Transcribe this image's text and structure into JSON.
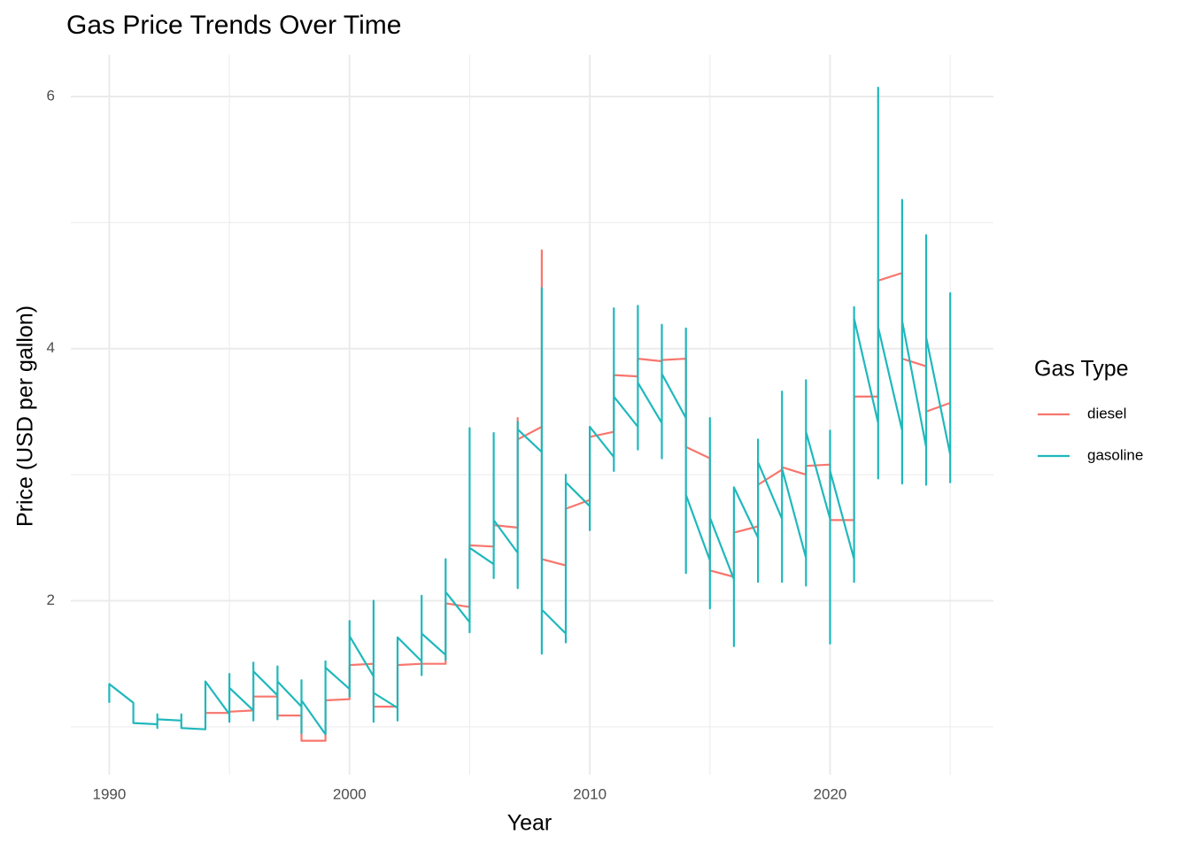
{
  "chart_data": {
    "type": "line",
    "title": "Gas Price Trends Over Time",
    "x_label": "Year",
    "y_label": "Price (USD per gallon)",
    "legend_title": "Gas Type",
    "legend": "right",
    "xlim": [
      1988.4,
      2026.8
    ],
    "xticks": [
      1990,
      2000,
      2010,
      2020
    ],
    "x_minor_ticks": [
      1995,
      2005,
      2015,
      2025
    ],
    "ylim": [
      0.62,
      6.33
    ],
    "yticks": [
      2,
      4,
      6
    ],
    "y_minor_ticks": [
      1,
      3,
      5
    ],
    "grid": true,
    "series": [
      {
        "name": "diesel",
        "color": "#F8766D",
        "x": [
          1994,
          1995,
          1995,
          1996,
          1996,
          1997,
          1997,
          1998,
          1998,
          1999,
          1999,
          2000,
          2000,
          2001,
          2001,
          2002,
          2002,
          2003,
          2003,
          2004,
          2004,
          2005,
          2005,
          2006,
          2006,
          2007,
          2007,
          2007,
          2008,
          2008,
          2008,
          2009,
          2009,
          2010,
          2010,
          2011,
          2011,
          2012,
          2012,
          2013,
          2013,
          2014,
          2014,
          2015,
          2015,
          2016,
          2016,
          2017,
          2017,
          2018,
          2018,
          2019,
          2019,
          2020,
          2020,
          2021,
          2021,
          2022,
          2022,
          2023,
          2023,
          2024,
          2024,
          2025,
          2025
        ],
        "values": [
          1.11,
          1.11,
          1.12,
          1.13,
          1.24,
          1.24,
          1.09,
          1.09,
          0.89,
          0.89,
          1.21,
          1.22,
          1.49,
          1.5,
          1.16,
          1.16,
          1.49,
          1.5,
          1.5,
          1.5,
          1.98,
          1.95,
          2.44,
          2.43,
          2.6,
          2.58,
          3.45,
          3.28,
          3.38,
          4.78,
          2.33,
          2.28,
          2.73,
          2.8,
          3.3,
          3.34,
          3.79,
          3.78,
          3.92,
          3.9,
          3.91,
          3.92,
          3.22,
          3.13,
          2.24,
          2.19,
          2.54,
          2.59,
          2.92,
          3.04,
          3.06,
          3.0,
          3.07,
          3.08,
          2.64,
          2.64,
          3.62,
          3.62,
          4.54,
          4.6,
          3.92,
          3.86,
          3.5,
          3.57,
          3.57
        ]
      },
      {
        "name": "gasoline",
        "color": "#1FB8BC",
        "x": [
          1990,
          1990,
          1991,
          1991,
          1992,
          1992,
          1992,
          1992,
          1993,
          1993,
          1993,
          1994,
          1994,
          1995,
          1995,
          1995,
          1995,
          1996,
          1996,
          1996,
          1996,
          1997,
          1997,
          1997,
          1997,
          1998,
          1998,
          1998,
          1998,
          1999,
          1999,
          1999,
          2000,
          2000,
          2000,
          2000,
          2001,
          2001,
          2001,
          2001,
          2002,
          2002,
          2002,
          2003,
          2003,
          2003,
          2003,
          2004,
          2004,
          2004,
          2004,
          2005,
          2005,
          2005,
          2005,
          2006,
          2006,
          2006,
          2006,
          2007,
          2007,
          2007,
          2007,
          2008,
          2008,
          2008,
          2008,
          2009,
          2009,
          2009,
          2009,
          2010,
          2010,
          2010,
          2011,
          2011,
          2011,
          2011,
          2012,
          2012,
          2012,
          2012,
          2013,
          2013,
          2013,
          2013,
          2014,
          2014,
          2014,
          2014,
          2015,
          2015,
          2015,
          2015,
          2016,
          2016,
          2016,
          2017,
          2017,
          2017,
          2017,
          2018,
          2018,
          2018,
          2018,
          2019,
          2019,
          2019,
          2019,
          2020,
          2020,
          2020,
          2020,
          2021,
          2021,
          2021,
          2021,
          2022,
          2022,
          2022,
          2022,
          2023,
          2023,
          2023,
          2023,
          2024,
          2024,
          2024,
          2024,
          2025,
          2025,
          2025,
          2025
        ],
        "values": [
          1.19,
          1.34,
          1.19,
          1.03,
          1.02,
          1.1,
          0.99,
          1.06,
          1.05,
          1.1,
          0.99,
          0.98,
          1.36,
          1.1,
          1.42,
          1.04,
          1.31,
          1.13,
          1.51,
          1.05,
          1.44,
          1.25,
          1.48,
          1.06,
          1.36,
          1.16,
          1.37,
          0.95,
          1.21,
          0.94,
          1.52,
          1.47,
          1.3,
          1.84,
          1.24,
          1.72,
          1.4,
          2.0,
          1.04,
          1.27,
          1.15,
          1.05,
          1.71,
          1.52,
          2.04,
          1.41,
          1.74,
          1.57,
          2.33,
          1.53,
          2.07,
          1.83,
          3.37,
          1.75,
          2.42,
          2.29,
          3.33,
          2.18,
          2.64,
          2.38,
          3.42,
          2.1,
          3.36,
          3.18,
          4.48,
          1.58,
          1.93,
          1.74,
          1.67,
          3.0,
          2.94,
          2.75,
          2.56,
          3.38,
          3.14,
          4.32,
          3.03,
          3.62,
          3.38,
          4.34,
          3.2,
          3.73,
          3.41,
          4.19,
          3.13,
          3.8,
          3.45,
          4.16,
          2.22,
          2.84,
          2.32,
          3.45,
          1.94,
          2.66,
          2.17,
          1.64,
          2.9,
          2.5,
          3.28,
          2.15,
          3.1,
          2.65,
          3.66,
          2.15,
          3.05,
          2.34,
          3.75,
          2.12,
          3.34,
          2.65,
          3.35,
          1.66,
          3.03,
          2.33,
          2.15,
          4.33,
          4.24,
          3.41,
          6.07,
          2.97,
          4.17,
          3.35,
          5.18,
          2.93,
          4.22,
          3.22,
          4.9,
          2.92,
          4.09,
          3.16,
          4.44,
          2.94,
          3.22
        ]
      }
    ]
  }
}
